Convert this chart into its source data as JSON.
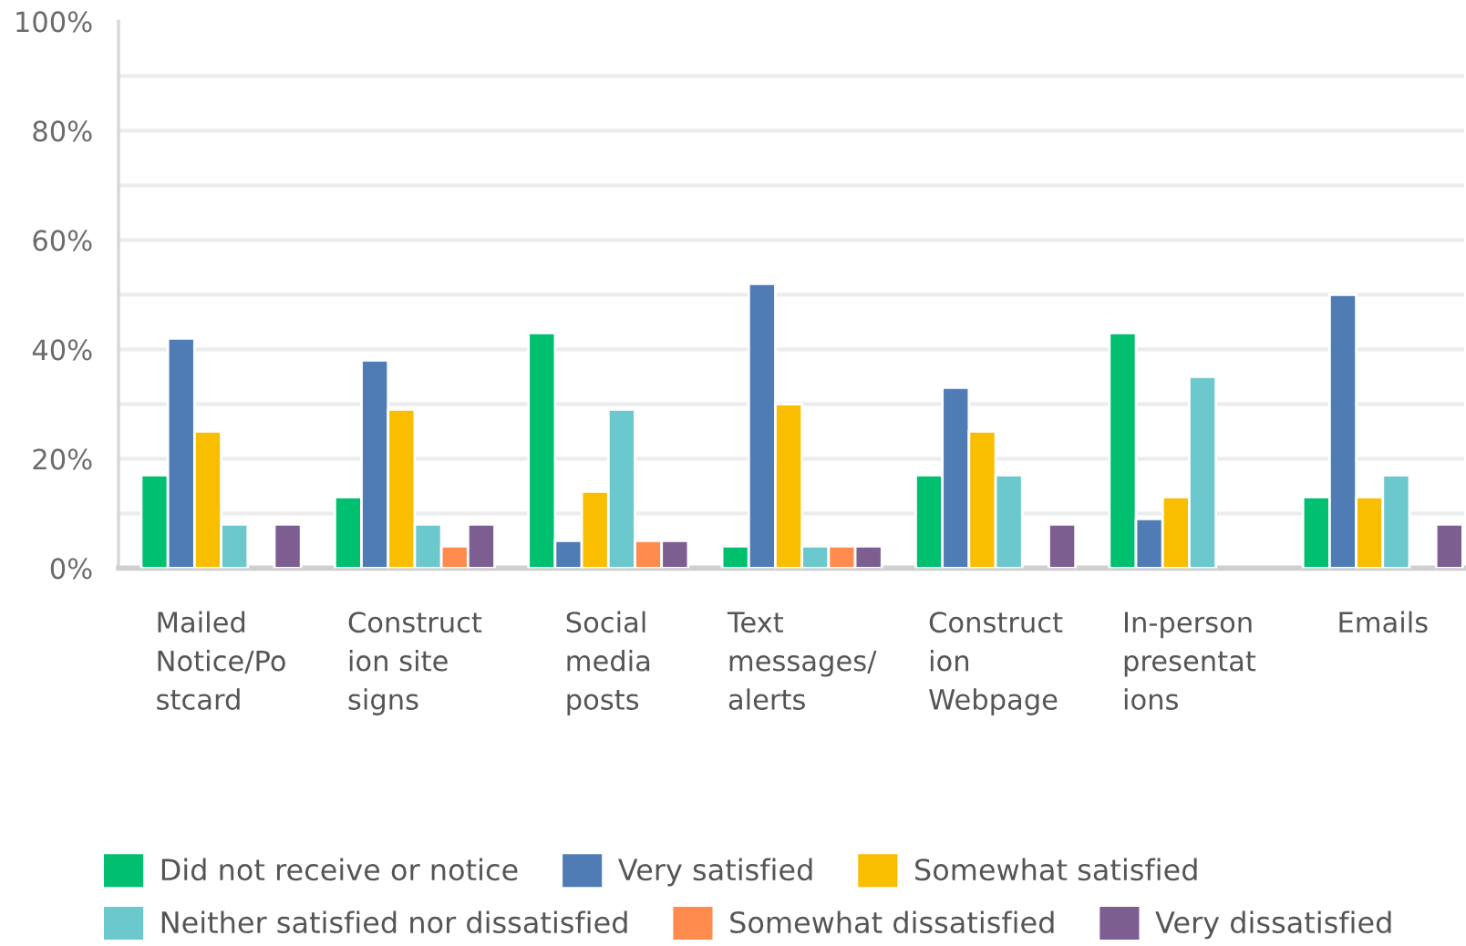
{
  "chart_data": {
    "type": "bar",
    "categories": [
      "Mailed Notice/Postcard",
      "Construction site signs",
      "Social media posts",
      "Text messages/alerts",
      "Construction Webpage",
      "In-person presentations",
      "Emails"
    ],
    "series": [
      {
        "name": "Did not receive or notice",
        "color": "#00bf6f",
        "values": [
          17,
          13,
          43,
          4,
          17,
          43,
          13
        ]
      },
      {
        "name": "Very satisfied",
        "color": "#507cb6",
        "values": [
          42,
          38,
          5,
          52,
          33,
          9,
          50
        ]
      },
      {
        "name": "Somewhat satisfied",
        "color": "#f9be00",
        "values": [
          25,
          29,
          14,
          30,
          25,
          13,
          13
        ]
      },
      {
        "name": "Neither satisfied nor dissatisfied",
        "color": "#6bc8cd",
        "values": [
          8,
          8,
          29,
          4,
          17,
          35,
          17
        ]
      },
      {
        "name": "Somewhat dissatisfied",
        "color": "#ff8b4f",
        "values": [
          0,
          4,
          5,
          4,
          0,
          0,
          0
        ]
      },
      {
        "name": "Very dissatisfied",
        "color": "#7d5e90",
        "values": [
          8,
          8,
          5,
          4,
          8,
          0,
          8
        ]
      }
    ],
    "ylim": [
      0,
      100
    ],
    "yticks": [
      {
        "value": 0,
        "label": "0%"
      },
      {
        "value": 10,
        "label": null
      },
      {
        "value": 20,
        "label": "20%"
      },
      {
        "value": 30,
        "label": null
      },
      {
        "value": 40,
        "label": "40%"
      },
      {
        "value": 50,
        "label": null
      },
      {
        "value": 60,
        "label": "60%"
      },
      {
        "value": 70,
        "label": null
      },
      {
        "value": 80,
        "label": "80%"
      },
      {
        "value": 90,
        "label": null
      },
      {
        "value": 100,
        "label": "100%"
      }
    ],
    "grid": "y",
    "legend": "bottom"
  }
}
